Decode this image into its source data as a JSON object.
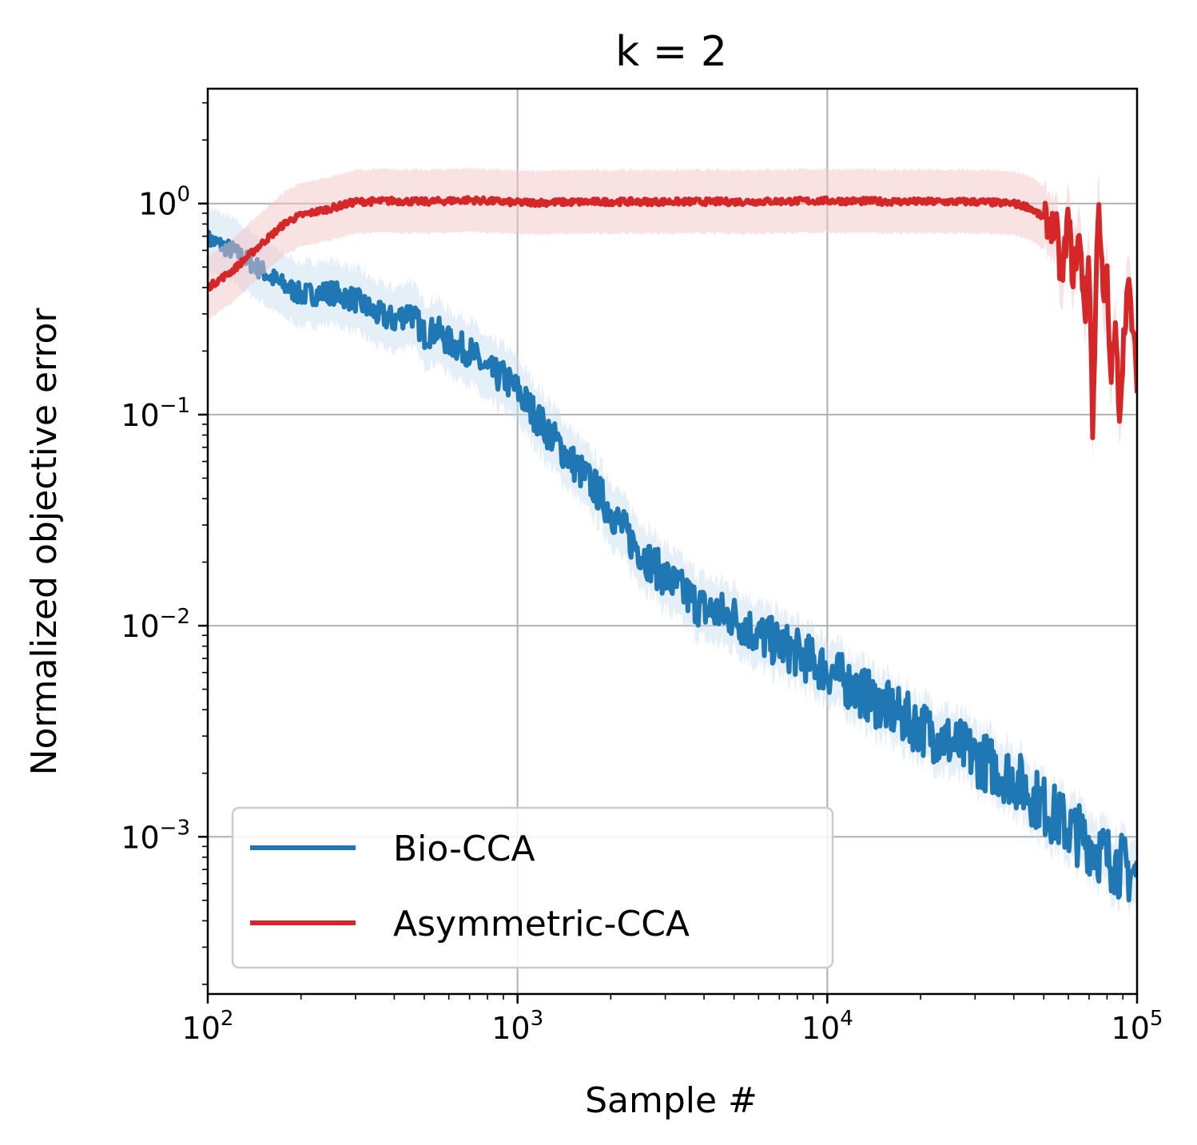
{
  "chart_data": {
    "type": "line",
    "title": "k = 2",
    "xlabel": "Sample #",
    "ylabel": "Normalized objective error",
    "xscale": "log",
    "yscale": "log",
    "xlim": [
      100,
      100000
    ],
    "ylim": [
      0.00018,
      3.5
    ],
    "grid": true,
    "legend_position": "lower-left",
    "x_ticks": [
      {
        "value": 100,
        "base": "10",
        "exp": "2"
      },
      {
        "value": 1000,
        "base": "10",
        "exp": "3"
      },
      {
        "value": 10000,
        "base": "10",
        "exp": "4"
      },
      {
        "value": 100000,
        "base": "10",
        "exp": "5"
      }
    ],
    "y_ticks": [
      {
        "value": 1,
        "base": "10",
        "exp": "0"
      },
      {
        "value": 0.1,
        "base": "10",
        "exp": "−1"
      },
      {
        "value": 0.01,
        "base": "10",
        "exp": "−2"
      },
      {
        "value": 0.001,
        "base": "10",
        "exp": "−3"
      }
    ],
    "series": [
      {
        "name": "Bio-CCA",
        "color": "#1f77b4",
        "band_color": "#c6dbef",
        "x": [
          100,
          120,
          150,
          170,
          200,
          250,
          300,
          350,
          400,
          450,
          500,
          550,
          600,
          700,
          800,
          900,
          1000,
          1200,
          1500,
          1800,
          2000,
          2300,
          2600,
          3000,
          3500,
          4000,
          5000,
          6000,
          7000,
          8000,
          10000,
          12000,
          15000,
          20000,
          25000,
          30000,
          40000,
          50000,
          60000,
          70000,
          80000,
          100000
        ],
        "y": [
          0.68,
          0.6,
          0.48,
          0.42,
          0.37,
          0.38,
          0.35,
          0.3,
          0.28,
          0.31,
          0.24,
          0.25,
          0.22,
          0.2,
          0.16,
          0.15,
          0.13,
          0.09,
          0.06,
          0.044,
          0.035,
          0.026,
          0.021,
          0.017,
          0.014,
          0.012,
          0.011,
          0.009,
          0.0082,
          0.0074,
          0.0062,
          0.0052,
          0.0042,
          0.0033,
          0.0028,
          0.0024,
          0.0019,
          0.0014,
          0.0011,
          0.00095,
          0.0008,
          0.00065
        ],
        "band": 0.3
      },
      {
        "name": "Asymmetric-CCA",
        "color": "#d62728",
        "band_color": "#f4c6c6",
        "x": [
          100,
          120,
          150,
          180,
          200,
          250,
          300,
          400,
          500,
          700,
          1000,
          2000,
          5000,
          10000,
          20000,
          30000,
          40000,
          45000,
          50000,
          55000,
          57000,
          60000,
          62000,
          65000,
          68000,
          70000,
          72000,
          75000,
          78000,
          80000,
          82000,
          85000,
          88000,
          90000,
          93000,
          95000,
          98000,
          100000
        ],
        "y": [
          0.4,
          0.48,
          0.65,
          0.82,
          0.88,
          0.95,
          1.02,
          1.03,
          1.02,
          1.04,
          1.01,
          1.02,
          1.02,
          1.03,
          1.02,
          1.02,
          1.0,
          0.96,
          0.85,
          0.75,
          0.4,
          0.9,
          0.45,
          0.7,
          0.3,
          0.6,
          0.08,
          1.2,
          0.3,
          0.45,
          0.15,
          0.25,
          0.1,
          0.2,
          0.4,
          0.35,
          0.2,
          0.15
        ],
        "band": 0.3
      }
    ]
  }
}
